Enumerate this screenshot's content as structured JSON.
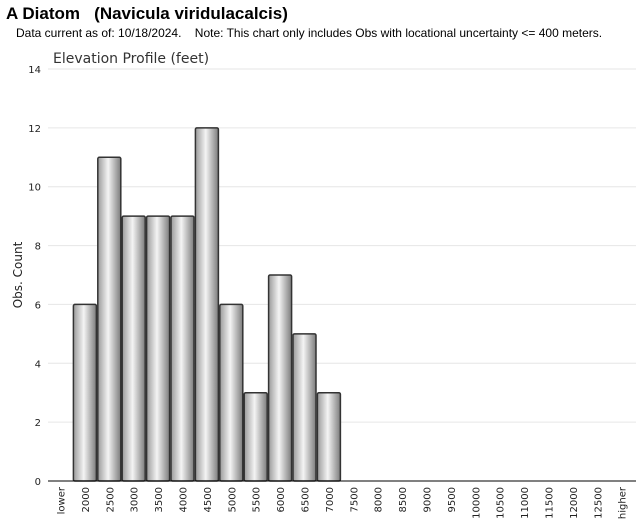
{
  "header": {
    "title": "A Diatom   (Navicula viridulacalcis)",
    "subtitle": "Data current as of: 10/18/2024.    Note: This chart only includes Obs with locational uncertainty <= 400 meters."
  },
  "chart_data": {
    "type": "bar",
    "title": "Elevation Profile (feet)",
    "xlabel": "",
    "ylabel": "Obs. Count",
    "ylim": [
      0,
      14
    ],
    "yticks": [
      0,
      2,
      4,
      6,
      8,
      10,
      12,
      14
    ],
    "grid": true,
    "categories": [
      "lower",
      "2000",
      "2500",
      "3000",
      "3500",
      "4000",
      "4500",
      "5000",
      "5500",
      "6000",
      "6500",
      "7000",
      "7500",
      "8000",
      "8500",
      "9000",
      "9500",
      "10000",
      "10500",
      "11000",
      "11500",
      "12000",
      "12500",
      "higher"
    ],
    "values": [
      0,
      6,
      11,
      9,
      9,
      9,
      12,
      6,
      3,
      7,
      5,
      3,
      0,
      0,
      0,
      0,
      0,
      0,
      0,
      0,
      0,
      0,
      0,
      0
    ],
    "bar_colors": {
      "edge": "#333333",
      "light": "#f2f2f2",
      "dark": "#8a8a8a"
    }
  }
}
